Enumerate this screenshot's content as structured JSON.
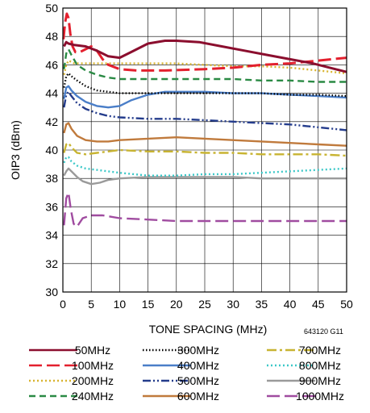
{
  "chart_data": {
    "type": "line",
    "xlabel": "TONE SPACING (MHz)",
    "ylabel": "OIP3 (dBm)",
    "xlim": [
      0,
      50
    ],
    "ylim": [
      30,
      50
    ],
    "xticks": [
      0,
      5,
      10,
      15,
      20,
      25,
      30,
      35,
      40,
      45,
      50
    ],
    "yticks": [
      30,
      32,
      34,
      36,
      38,
      40,
      42,
      44,
      46,
      48,
      50
    ],
    "grid": true,
    "legend_position": "bottom",
    "note": "643120 G11",
    "series": [
      {
        "name": "50MHz",
        "color": "#8b0e2e",
        "dash": "solid",
        "x": [
          0.2,
          0.6,
          1,
          2,
          4,
          6,
          8,
          10,
          12,
          15,
          18,
          20,
          24,
          28,
          32,
          36,
          40,
          44,
          48,
          50
        ],
        "y": [
          47.3,
          47.6,
          47.5,
          47.4,
          47.3,
          47.0,
          46.6,
          46.5,
          46.9,
          47.5,
          47.7,
          47.7,
          47.6,
          47.3,
          47.0,
          46.7,
          46.4,
          46.1,
          45.7,
          45.5
        ]
      },
      {
        "name": "100MHz",
        "color": "#e3202e",
        "dash": "longdash",
        "x": [
          0.1,
          0.4,
          0.7,
          1,
          1.3,
          1.7,
          2.2,
          3,
          4,
          5,
          6,
          7,
          8,
          10,
          13,
          18,
          25,
          30,
          35,
          40,
          45,
          50
        ],
        "y": [
          47.8,
          49.0,
          49.6,
          49.3,
          48.2,
          47.3,
          46.9,
          46.9,
          47.1,
          47.3,
          47.0,
          46.4,
          46.0,
          45.7,
          45.6,
          45.6,
          45.7,
          45.8,
          46.0,
          46.1,
          46.3,
          46.5
        ]
      },
      {
        "name": "200MHz",
        "color": "#d8b430",
        "dash": "dotted",
        "x": [
          0.2,
          0.6,
          1,
          2,
          4,
          6,
          10,
          15,
          20,
          25,
          30,
          35,
          40,
          45,
          50
        ],
        "y": [
          45.3,
          46.0,
          46.3,
          46.1,
          46.1,
          46.1,
          46.1,
          46.1,
          46.1,
          46.0,
          45.9,
          45.9,
          45.8,
          45.6,
          45.4
        ]
      },
      {
        "name": "240MHz",
        "color": "#2a8a44",
        "dash": "dashed",
        "x": [
          0.2,
          0.6,
          1,
          1.5,
          2.5,
          4,
          6,
          8,
          10,
          15,
          20,
          25,
          30,
          35,
          40,
          45,
          50
        ],
        "y": [
          45.7,
          46.8,
          47.1,
          46.7,
          46.0,
          45.6,
          45.3,
          45.1,
          45.0,
          45.0,
          45.0,
          45.0,
          45.0,
          44.9,
          44.9,
          44.8,
          44.8
        ]
      },
      {
        "name": "300MHz",
        "color": "#000000",
        "dash": "fine-dotted",
        "x": [
          0.2,
          0.6,
          1,
          1.5,
          2.5,
          4,
          6,
          8,
          10,
          15,
          20,
          25,
          30,
          35,
          40,
          45,
          50
        ],
        "y": [
          44.4,
          45.2,
          45.4,
          45.2,
          44.9,
          44.5,
          44.2,
          44.1,
          44.0,
          44.0,
          44.0,
          44.0,
          44.0,
          44.0,
          43.9,
          43.9,
          43.8
        ]
      },
      {
        "name": "400MHz",
        "color": "#4a7ec8",
        "dash": "solid",
        "x": [
          0.2,
          0.6,
          1,
          1.5,
          2.5,
          4,
          6,
          8,
          10,
          12,
          15,
          18,
          20,
          25,
          30,
          35,
          40,
          45,
          50
        ],
        "y": [
          43.6,
          44.4,
          44.5,
          44.2,
          43.8,
          43.4,
          43.1,
          43.0,
          43.1,
          43.5,
          43.9,
          44.1,
          44.1,
          44.1,
          44.0,
          44.0,
          43.9,
          43.8,
          43.7
        ]
      },
      {
        "name": "500MHz",
        "color": "#243c8c",
        "dash": "dashdotdot",
        "x": [
          0.2,
          0.6,
          1,
          1.5,
          2.5,
          4,
          6,
          8,
          10,
          15,
          20,
          25,
          30,
          35,
          40,
          45,
          50
        ],
        "y": [
          43.0,
          43.9,
          44.1,
          43.8,
          43.3,
          42.9,
          42.6,
          42.4,
          42.3,
          42.2,
          42.2,
          42.1,
          42.0,
          41.9,
          41.8,
          41.6,
          41.4
        ]
      },
      {
        "name": "600MHz",
        "color": "#c07a3c",
        "dash": "solid",
        "x": [
          0.2,
          0.6,
          1,
          1.5,
          2.5,
          4,
          6,
          8,
          10,
          15,
          20,
          25,
          30,
          35,
          40,
          45,
          50
        ],
        "y": [
          41.2,
          41.8,
          41.9,
          41.5,
          41.0,
          40.7,
          40.6,
          40.6,
          40.7,
          40.8,
          40.9,
          40.8,
          40.7,
          40.6,
          40.5,
          40.4,
          40.3
        ]
      },
      {
        "name": "700MHz",
        "color": "#c8b432",
        "dash": "dashdot",
        "x": [
          0.2,
          0.6,
          1,
          1.5,
          2.5,
          4,
          6,
          8,
          10,
          15,
          20,
          25,
          30,
          35,
          40,
          45,
          50
        ],
        "y": [
          39.8,
          40.4,
          40.5,
          40.2,
          39.8,
          39.7,
          39.8,
          39.9,
          40.0,
          39.9,
          39.9,
          39.8,
          39.8,
          39.7,
          39.7,
          39.7,
          39.6
        ]
      },
      {
        "name": "800MHz",
        "color": "#3cc8c8",
        "dash": "dotted",
        "x": [
          0.2,
          0.6,
          1,
          1.5,
          2.5,
          4,
          6,
          8,
          10,
          15,
          20,
          25,
          30,
          35,
          40,
          45,
          50
        ],
        "y": [
          39.1,
          39.5,
          39.5,
          39.2,
          38.9,
          38.7,
          38.6,
          38.5,
          38.4,
          38.2,
          38.2,
          38.3,
          38.3,
          38.4,
          38.5,
          38.6,
          38.7
        ]
      },
      {
        "name": "900MHz",
        "color": "#9a9a9a",
        "dash": "solid",
        "x": [
          0.2,
          0.6,
          1,
          1.5,
          2.5,
          3.5,
          5,
          6.5,
          8,
          10,
          15,
          20,
          25,
          30,
          35,
          40,
          45,
          50
        ],
        "y": [
          38.2,
          38.5,
          38.7,
          38.5,
          38.1,
          37.8,
          37.6,
          37.7,
          37.9,
          38.0,
          38.1,
          38.1,
          38.1,
          38.1,
          38.0,
          38.0,
          38.0,
          38.0
        ]
      },
      {
        "name": "1000MHz",
        "color": "#a04ca0",
        "dash": "longdash",
        "x": [
          0.2,
          0.6,
          1,
          1.4,
          1.9,
          2.5,
          3.5,
          5,
          7,
          10,
          15,
          20,
          25,
          30,
          35,
          40,
          45,
          50
        ],
        "y": [
          34.7,
          36.6,
          37.0,
          35.8,
          34.8,
          34.6,
          35.2,
          35.4,
          35.4,
          35.2,
          35.1,
          35.0,
          35.0,
          35.0,
          35.0,
          35.0,
          35.0,
          35.0
        ]
      }
    ]
  }
}
